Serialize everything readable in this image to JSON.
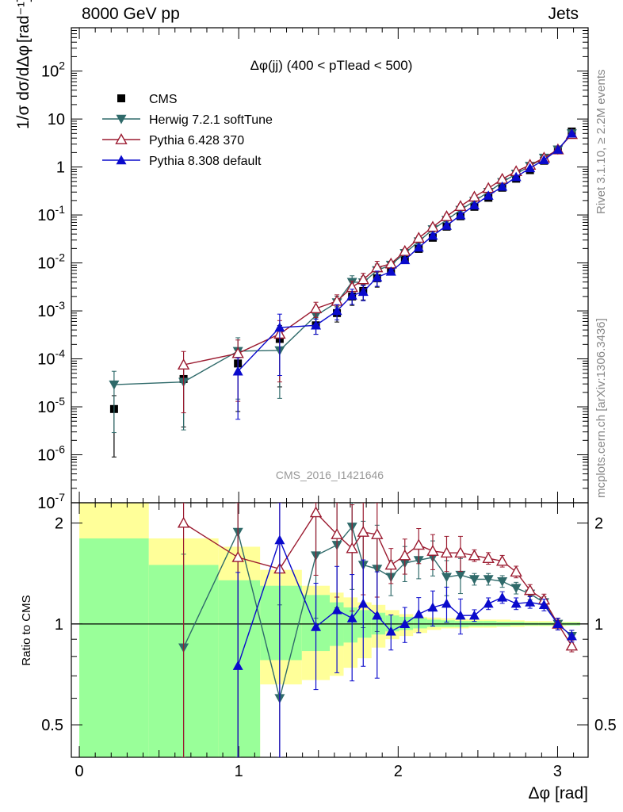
{
  "header": {
    "beam": "8000 GeV pp",
    "process": "Jets"
  },
  "side_labels": {
    "rivet": "Rivet 3.1.10, ≥ 2.2M events",
    "source": "mcplots.cern.ch [arXiv:1306.3436]"
  },
  "chart_data": [
    {
      "type": "scatter",
      "panel": "main",
      "title": "Δφ(jj) (400 < pTlead <  500)",
      "watermark": "CMS_2016_I1421646",
      "ylabel_fraction": "1/σ dσ/dΔφ",
      "ylabel_unit": "[rad⁻¹]",
      "yscale": "log",
      "ylim": [
        1e-07,
        800
      ],
      "xlim": [
        -0.05,
        3.1916
      ],
      "legend_position": "top-left",
      "series": [
        {
          "name": "CMS",
          "marker": "square",
          "color": "#000000",
          "x": [
            0.218,
            0.654,
            0.995,
            1.257,
            1.484,
            1.616,
            1.711,
            1.781,
            1.868,
            1.955,
            2.042,
            2.129,
            2.217,
            2.304,
            2.391,
            2.478,
            2.566,
            2.653,
            2.74,
            2.827,
            2.915,
            3.002,
            3.089
          ],
          "y": [
            9e-06,
            3.8e-05,
            8e-05,
            0.00026,
            0.0005,
            0.0009,
            0.002,
            0.0026,
            0.0048,
            0.0066,
            0.0115,
            0.0196,
            0.0335,
            0.057,
            0.094,
            0.148,
            0.228,
            0.37,
            0.57,
            0.86,
            1.35,
            2.3,
            5.5
          ]
        },
        {
          "name": "Herwig 7.2.1 softTune",
          "marker": "triangle-down",
          "color": "#2f6a6a",
          "x": [
            0.218,
            0.654,
            0.995,
            1.257,
            1.484,
            1.616,
            1.711,
            1.781,
            1.868,
            1.955,
            2.042,
            2.129,
            2.217,
            2.304,
            2.391,
            2.478,
            2.566,
            2.653,
            2.74,
            2.827,
            2.915,
            3.002,
            3.089
          ],
          "y": [
            2.9e-05,
            3.3e-05,
            0.000145,
            0.00015,
            0.0008,
            0.0015,
            0.004,
            0.0039,
            0.007,
            0.0091,
            0.016,
            0.028,
            0.05,
            0.078,
            0.127,
            0.195,
            0.3,
            0.48,
            0.72,
            1.05,
            1.55,
            2.3,
            5.0
          ]
        },
        {
          "name": "Pythia 6.428 370",
          "marker": "triangle-up-open",
          "color": "#9b1b30",
          "x": [
            0.654,
            0.995,
            1.257,
            1.484,
            1.616,
            1.711,
            1.781,
            1.868,
            1.955,
            2.042,
            2.129,
            2.217,
            2.304,
            2.391,
            2.478,
            2.566,
            2.653,
            2.74,
            2.827,
            2.915,
            3.002,
            3.089
          ],
          "y": [
            7.5e-05,
            0.00013,
            0.00033,
            0.00112,
            0.0016,
            0.0031,
            0.0045,
            0.008,
            0.0096,
            0.0175,
            0.033,
            0.056,
            0.093,
            0.152,
            0.238,
            0.36,
            0.56,
            0.81,
            1.1,
            1.55,
            2.3,
            4.8
          ]
        },
        {
          "name": "Pythia 8.308 default",
          "marker": "triangle-up",
          "color": "#0a0acc",
          "x": [
            0.995,
            1.257,
            1.484,
            1.616,
            1.711,
            1.781,
            1.868,
            1.955,
            2.042,
            2.129,
            2.217,
            2.304,
            2.391,
            2.478,
            2.566,
            2.653,
            2.74,
            2.827,
            2.915,
            3.002,
            3.089
          ],
          "y": [
            5.5e-05,
            0.00045,
            0.0005,
            0.001,
            0.0021,
            0.0025,
            0.005,
            0.0066,
            0.0115,
            0.021,
            0.037,
            0.06,
            0.099,
            0.159,
            0.253,
            0.39,
            0.62,
            0.95,
            1.4,
            2.3,
            5.0
          ]
        }
      ]
    },
    {
      "type": "scatter",
      "panel": "ratio",
      "ylabel": "Ratio to CMS",
      "xlabel": "Δφ [rad]",
      "yscale": "log",
      "ylim": [
        0.4,
        2.3
      ],
      "xlim": [
        -0.05,
        3.1916
      ],
      "x_ticks": [
        "0",
        "1",
        "2",
        "3"
      ],
      "y_ticks": [
        "0.5",
        "1",
        "2"
      ],
      "uncertainty_bands": {
        "colors": {
          "stat": "#99ff99",
          "total": "#ffff99"
        },
        "edges": [
          0,
          0.436,
          0.873,
          1.134,
          1.396,
          1.571,
          1.658,
          1.745,
          1.833,
          1.92,
          2.007,
          2.094,
          2.182,
          2.269,
          2.356,
          2.443,
          2.531,
          2.618,
          2.705,
          2.793,
          2.88,
          2.967,
          3.054,
          3.1416
        ],
        "stat_lo": [
          0.4,
          0.4,
          0.4,
          0.78,
          0.83,
          0.86,
          0.88,
          0.91,
          0.93,
          0.95,
          0.96,
          0.97,
          0.98,
          0.98,
          0.98,
          0.985,
          0.985,
          0.985,
          0.99,
          0.99,
          0.99,
          0.99,
          0.99
        ],
        "stat_hi": [
          1.8,
          1.5,
          1.35,
          1.3,
          1.22,
          1.16,
          1.12,
          1.1,
          1.08,
          1.06,
          1.05,
          1.04,
          1.03,
          1.025,
          1.02,
          1.02,
          1.02,
          1.015,
          1.015,
          1.01,
          1.01,
          1.01,
          1.01
        ],
        "tot_lo": [
          0.4,
          0.66,
          0.4,
          0.66,
          0.68,
          0.7,
          0.74,
          0.79,
          0.85,
          0.9,
          0.92,
          0.94,
          0.96,
          0.97,
          0.97,
          0.975,
          0.975,
          0.98,
          0.98,
          0.985,
          0.985,
          0.985,
          0.99
        ],
        "tot_hi": [
          2.4,
          1.8,
          1.7,
          1.45,
          1.3,
          1.24,
          1.2,
          1.16,
          1.14,
          1.1,
          1.07,
          1.05,
          1.045,
          1.04,
          1.035,
          1.03,
          1.03,
          1.03,
          1.025,
          1.02,
          1.02,
          1.015,
          1.015
        ]
      },
      "series": [
        {
          "name": "Herwig 7.2.1 softTune",
          "color": "#2f6a6a",
          "marker": "triangle-down",
          "x": [
            0.654,
            0.995,
            1.257,
            1.484,
            1.616,
            1.711,
            1.781,
            1.868,
            1.955,
            2.042,
            2.129,
            2.217,
            2.304,
            2.391,
            2.478,
            2.566,
            2.653,
            2.74,
            2.827,
            2.915,
            3.002,
            3.089
          ],
          "y": [
            0.85,
            1.88,
            0.6,
            1.6,
            1.72,
            1.95,
            1.5,
            1.46,
            1.38,
            1.52,
            1.55,
            1.58,
            1.38,
            1.4,
            1.36,
            1.36,
            1.34,
            1.28,
            1.23,
            1.16,
            1.0,
            0.92
          ]
        },
        {
          "name": "Pythia 6.428 370",
          "color": "#9b1b30",
          "marker": "triangle-up-open",
          "x": [
            0.654,
            0.995,
            1.257,
            1.484,
            1.616,
            1.711,
            1.781,
            1.868,
            1.955,
            2.042,
            2.129,
            2.217,
            2.304,
            2.391,
            2.478,
            2.566,
            2.653,
            2.74,
            2.827,
            2.915,
            3.002,
            3.089
          ],
          "y": [
            2.0,
            1.58,
            1.46,
            2.15,
            1.85,
            1.68,
            1.88,
            1.85,
            1.5,
            1.6,
            1.72,
            1.65,
            1.63,
            1.63,
            1.6,
            1.57,
            1.54,
            1.43,
            1.26,
            1.18,
            1.0,
            0.86
          ]
        },
        {
          "name": "Pythia 8.308 default",
          "color": "#0a0acc",
          "marker": "triangle-up",
          "x": [
            0.995,
            1.257,
            1.484,
            1.616,
            1.711,
            1.781,
            1.868,
            1.955,
            2.042,
            2.129,
            2.217,
            2.304,
            2.391,
            2.478,
            2.566,
            2.653,
            2.74,
            2.827,
            2.915,
            3.002,
            3.089
          ],
          "y": [
            0.75,
            1.78,
            0.98,
            1.1,
            1.04,
            1.15,
            1.06,
            0.95,
            1.0,
            1.07,
            1.12,
            1.15,
            1.06,
            1.06,
            1.15,
            1.2,
            1.15,
            1.16,
            1.14,
            1.0,
            0.92
          ]
        }
      ]
    }
  ]
}
